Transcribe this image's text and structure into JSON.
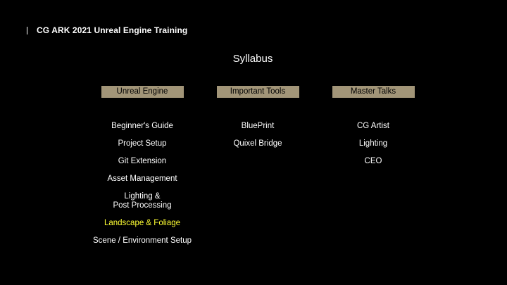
{
  "header": {
    "title": "CG ARK 2021 Unreal Engine Training"
  },
  "slide": {
    "title": "Syllabus"
  },
  "colors": {
    "background": "#000000",
    "text": "#ffffff",
    "header_box": "#a29578",
    "highlight": "#ffff33"
  },
  "columns": [
    {
      "header": "Unreal Engine",
      "items": [
        {
          "label": "Beginner's Guide",
          "highlighted": false
        },
        {
          "label": "Project Setup",
          "highlighted": false
        },
        {
          "label": "Git Extension",
          "highlighted": false
        },
        {
          "label": "Asset Management",
          "highlighted": false
        },
        {
          "label": "Lighting &\nPost Processing",
          "highlighted": false
        },
        {
          "label": "Landscape & Foliage",
          "highlighted": true
        },
        {
          "label": "Scene / Environment Setup",
          "highlighted": false
        }
      ]
    },
    {
      "header": "Important Tools",
      "items": [
        {
          "label": "BluePrint",
          "highlighted": false
        },
        {
          "label": "Quixel Bridge",
          "highlighted": false
        }
      ]
    },
    {
      "header": "Master Talks",
      "items": [
        {
          "label": "CG Artist",
          "highlighted": false
        },
        {
          "label": "Lighting",
          "highlighted": false
        },
        {
          "label": "CEO",
          "highlighted": false
        }
      ]
    }
  ]
}
